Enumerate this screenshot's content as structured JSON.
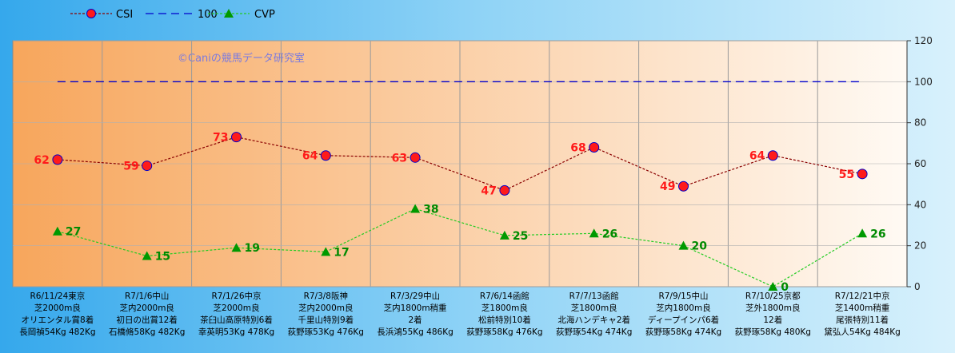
{
  "watermark": "©Caniの競馬データ研究室",
  "chart_data": {
    "type": "line",
    "legend": [
      "CSI",
      "100",
      "CVP"
    ],
    "legend_position": "top-left",
    "y_axis_side": "right",
    "ylim": [
      0,
      120
    ],
    "yticks": [
      0,
      20,
      40,
      60,
      80,
      100,
      120
    ],
    "grid": true,
    "colors": {
      "CSI": "#8b0000",
      "CSI_marker": "#ff1a1a",
      "CSI_marker_edge": "#0000cc",
      "100": "#0000cc",
      "CVP": "#22cc22",
      "CVP_marker": "#009900",
      "bg_left": "#f7a65c",
      "bg_right": "#fffaf4"
    },
    "categories": [
      [
        "R6/11/24東京",
        "芝2000m良",
        "オリエンタル賞8着",
        "長岡禎54Kg 482Kg"
      ],
      [
        "R7/1/6中山",
        "芝内2000m良",
        "初日の出賞12着",
        "石橋脩58Kg 482Kg"
      ],
      [
        "R7/1/26中京",
        "芝2000m良",
        "茶臼山高原特別6着",
        "幸英明53Kg 478Kg"
      ],
      [
        "R7/3/8阪神",
        "芝内2000m良",
        "千里山特別9着",
        "荻野琢53Kg 476Kg"
      ],
      [
        "R7/3/29中山",
        "芝内1800m稍重",
        "2着",
        "長浜鴻55Kg 486Kg"
      ],
      [
        "R7/6/14函館",
        "芝1800m良",
        "松前特別10着",
        "荻野琢58Kg 476Kg"
      ],
      [
        "R7/7/13函館",
        "芝1800m良",
        "北海ハンデキャ2着",
        "荻野琢54Kg 474Kg"
      ],
      [
        "R7/9/15中山",
        "芝内1800m良",
        "ディープインパ6着",
        "荻野琢58Kg 474Kg"
      ],
      [
        "R7/10/25京都",
        "芝外1800m良",
        "12着",
        "荻野琢58Kg 480Kg"
      ],
      [
        "R7/12/21中京",
        "芝1400m稍重",
        "尾張特別11着",
        "黛弘人54Kg 484Kg"
      ]
    ],
    "series": [
      {
        "name": "CSI",
        "values": [
          62,
          59,
          73,
          64,
          63,
          47,
          68,
          49,
          64,
          55
        ]
      },
      {
        "name": "100",
        "values": [
          100,
          100,
          100,
          100,
          100,
          100,
          100,
          100,
          100,
          100
        ]
      },
      {
        "name": "CVP",
        "values": [
          27,
          15,
          19,
          17,
          38,
          25,
          26,
          20,
          0,
          26
        ]
      }
    ]
  }
}
